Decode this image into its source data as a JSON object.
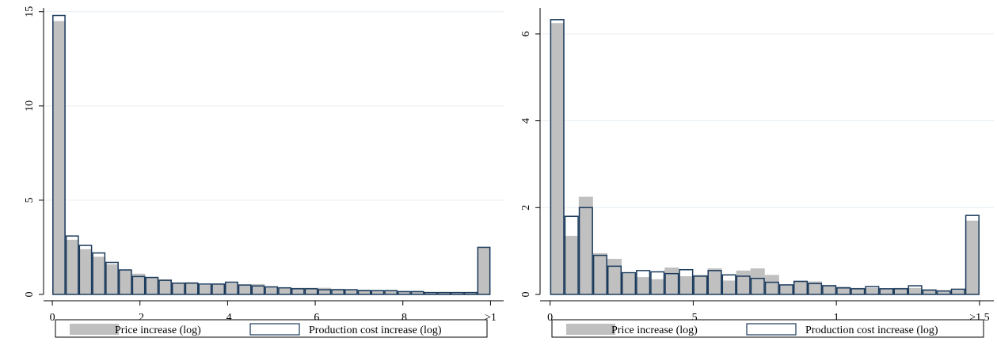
{
  "colors": {
    "price_fill": "#c0c0c0",
    "cost_stroke": "#1a3a5c",
    "axis": "#000000",
    "grid": "#e6eef2",
    "legend_border": "#000000"
  },
  "chart_data": [
    {
      "type": "bar",
      "bin_width": 0.0303,
      "x_tick_labels": [
        "0",
        ".2",
        ".4",
        ".6",
        ".8",
        ">1"
      ],
      "x_tick_values": [
        0,
        0.2,
        0.4,
        0.6,
        0.8,
        1.0
      ],
      "y_tick_labels": [
        "0",
        "5",
        "10",
        "15"
      ],
      "y_tick_values": [
        0,
        5,
        10,
        15
      ],
      "xlim": [
        -0.02,
        1.03
      ],
      "ylim": [
        0,
        15.2
      ],
      "grid": true,
      "legend_position": "bottom",
      "series": [
        {
          "name": "Price increase (log)",
          "style": "filled",
          "x": [
            0.0,
            0.0303,
            0.0606,
            0.0909,
            0.1212,
            0.1515,
            0.1818,
            0.2121,
            0.2424,
            0.2727,
            0.303,
            0.3333,
            0.3636,
            0.3939,
            0.4242,
            0.4545,
            0.4848,
            0.5152,
            0.5455,
            0.5758,
            0.6061,
            0.6364,
            0.6667,
            0.697,
            0.7273,
            0.7576,
            0.7879,
            0.8182,
            0.8485,
            0.8788,
            0.9091,
            0.9394,
            0.9697
          ],
          "values": [
            14.5,
            2.9,
            2.4,
            2.0,
            1.6,
            1.3,
            1.1,
            0.9,
            0.8,
            0.6,
            0.65,
            0.5,
            0.55,
            0.6,
            0.5,
            0.55,
            0.4,
            0.35,
            0.35,
            0.35,
            0.35,
            0.3,
            0.25,
            0.25,
            0.2,
            0.2,
            0.15,
            0.15,
            0.1,
            0.1,
            0.1,
            0.1,
            2.5
          ]
        },
        {
          "name": "Production cost increase (log)",
          "style": "outline",
          "x": [
            0.0,
            0.0303,
            0.0606,
            0.0909,
            0.1212,
            0.1515,
            0.1818,
            0.2121,
            0.2424,
            0.2727,
            0.303,
            0.3333,
            0.3636,
            0.3939,
            0.4242,
            0.4545,
            0.4848,
            0.5152,
            0.5455,
            0.5758,
            0.6061,
            0.6364,
            0.6667,
            0.697,
            0.7273,
            0.7576,
            0.7879,
            0.8182,
            0.8485,
            0.8788,
            0.9091,
            0.9394,
            0.9697
          ],
          "values": [
            14.8,
            3.1,
            2.6,
            2.2,
            1.7,
            1.3,
            0.95,
            0.9,
            0.75,
            0.6,
            0.6,
            0.55,
            0.55,
            0.65,
            0.5,
            0.45,
            0.4,
            0.35,
            0.3,
            0.3,
            0.25,
            0.25,
            0.25,
            0.2,
            0.2,
            0.2,
            0.15,
            0.15,
            0.1,
            0.1,
            0.1,
            0.1,
            2.5
          ]
        }
      ]
    },
    {
      "type": "bar",
      "bin_width": 0.05,
      "x_tick_labels": [
        "0",
        ".5",
        "1",
        ">1.5"
      ],
      "x_tick_values": [
        0,
        0.5,
        1.0,
        1.5
      ],
      "y_tick_labels": [
        "0",
        "2",
        "4",
        "6"
      ],
      "y_tick_values": [
        0,
        2,
        4,
        6
      ],
      "xlim": [
        -0.035,
        1.55
      ],
      "ylim": [
        0,
        6.6
      ],
      "grid": true,
      "legend_position": "bottom",
      "series": [
        {
          "name": "Price increase (log)",
          "style": "filled",
          "x": [
            0.0,
            0.05,
            0.1,
            0.15,
            0.2,
            0.25,
            0.3,
            0.35,
            0.4,
            0.45,
            0.5,
            0.55,
            0.6,
            0.65,
            0.7,
            0.75,
            0.8,
            0.85,
            0.9,
            0.95,
            1.0,
            1.05,
            1.1,
            1.15,
            1.2,
            1.25,
            1.3,
            1.35,
            1.4,
            1.45
          ],
          "values": [
            6.25,
            1.35,
            2.25,
            0.95,
            0.82,
            0.48,
            0.4,
            0.35,
            0.62,
            0.42,
            0.45,
            0.6,
            0.32,
            0.55,
            0.6,
            0.45,
            0.22,
            0.32,
            0.3,
            0.22,
            0.18,
            0.15,
            0.15,
            0.12,
            0.15,
            0.15,
            0.12,
            0.08,
            0.1,
            1.7
          ]
        },
        {
          "name": "Production cost increase (log)",
          "style": "outline",
          "x": [
            0.0,
            0.05,
            0.1,
            0.15,
            0.2,
            0.25,
            0.3,
            0.35,
            0.4,
            0.45,
            0.5,
            0.55,
            0.6,
            0.65,
            0.7,
            0.75,
            0.8,
            0.85,
            0.9,
            0.95,
            1.0,
            1.05,
            1.1,
            1.15,
            1.2,
            1.25,
            1.3,
            1.35,
            1.4,
            1.45
          ],
          "values": [
            6.33,
            1.8,
            2.0,
            0.9,
            0.65,
            0.5,
            0.55,
            0.52,
            0.48,
            0.57,
            0.42,
            0.55,
            0.45,
            0.42,
            0.37,
            0.28,
            0.22,
            0.3,
            0.25,
            0.2,
            0.15,
            0.13,
            0.18,
            0.13,
            0.13,
            0.2,
            0.1,
            0.08,
            0.12,
            1.82
          ]
        }
      ]
    }
  ]
}
